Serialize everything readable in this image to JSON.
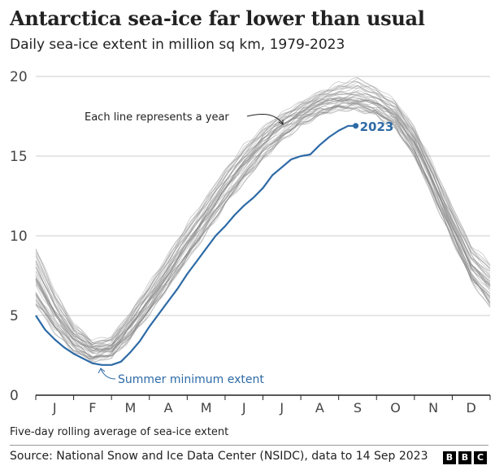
{
  "header": {
    "title": "Antarctica sea-ice far lower than usual",
    "subtitle": "Daily sea-ice extent in million sq km, 1979-2023"
  },
  "footer": {
    "note": "Five-day rolling average of sea-ice extent",
    "source": "Source: National Snow and Ice Data Center (NSIDC), data to 14 Sep 2023",
    "logo_letters": [
      "B",
      "B",
      "C"
    ]
  },
  "colors": {
    "highlight": "#2d6aa6",
    "history": "#888888",
    "grid": "#cccccc",
    "axis": "#222222",
    "text": "#222222"
  },
  "chart_data": {
    "type": "line",
    "title": "Antarctica sea-ice far lower than usual",
    "subtitle": "Daily sea-ice extent in million sq km, 1979-2023",
    "xlabel": "",
    "ylabel": "",
    "ylim": [
      0,
      20
    ],
    "yticks": [
      0,
      5,
      10,
      15,
      20
    ],
    "grid": true,
    "x_unit": "month index (0 = 1 Jan, 12 = 31 Dec)",
    "xlim": [
      0,
      12
    ],
    "month_labels": [
      "J",
      "F",
      "M",
      "A",
      "M",
      "J",
      "J",
      "A",
      "S",
      "O",
      "N",
      "D"
    ],
    "annotations": [
      {
        "text": "Each line represents a year",
        "target": "historical band, early July"
      },
      {
        "text": "Summer minimum extent",
        "target": "2023 minimum, late February"
      },
      {
        "text": "2023",
        "target": "2023 line end point"
      }
    ],
    "historical_envelope": {
      "description": "1979-2022, each year a thin grey line",
      "x": [
        0,
        0.5,
        1,
        1.5,
        2,
        2.5,
        3,
        3.5,
        4,
        4.5,
        5,
        5.5,
        6,
        6.5,
        7,
        7.5,
        8,
        8.5,
        9,
        9.5,
        10,
        10.5,
        11,
        11.5,
        12
      ],
      "min": [
        5.3,
        3.8,
        2.6,
        2.0,
        2.3,
        3.4,
        5.0,
        6.6,
        8.3,
        10.0,
        11.7,
        13.2,
        14.6,
        15.8,
        16.8,
        17.4,
        17.8,
        17.8,
        17.4,
        16.6,
        14.8,
        12.2,
        9.6,
        7.0,
        5.3
      ],
      "median": [
        7.3,
        5.2,
        3.6,
        2.8,
        3.0,
        4.3,
        6.0,
        7.7,
        9.5,
        11.3,
        13.0,
        14.6,
        15.9,
        16.9,
        17.7,
        18.3,
        18.6,
        18.6,
        18.3,
        17.6,
        15.9,
        13.4,
        10.7,
        8.1,
        7.0
      ],
      "max": [
        9.6,
        6.8,
        4.6,
        3.5,
        3.8,
        5.3,
        7.2,
        9.0,
        10.9,
        12.6,
        14.3,
        15.8,
        16.9,
        17.8,
        18.5,
        19.1,
        19.7,
        20.1,
        19.4,
        18.6,
        16.9,
        14.6,
        12.0,
        9.6,
        8.5
      ],
      "year_count": 44
    },
    "series": [
      {
        "name": "2023",
        "x": [
          0,
          0.25,
          0.5,
          0.75,
          1,
          1.25,
          1.5,
          1.75,
          2,
          2.25,
          2.5,
          2.75,
          3,
          3.25,
          3.5,
          3.75,
          4,
          4.25,
          4.5,
          4.75,
          5,
          5.25,
          5.5,
          5.75,
          6,
          6.25,
          6.5,
          6.75,
          7,
          7.25,
          7.5,
          7.75,
          8,
          8.25,
          8.45
        ],
        "values": [
          5.0,
          4.1,
          3.5,
          3.0,
          2.6,
          2.3,
          2.0,
          1.9,
          1.9,
          2.1,
          2.7,
          3.4,
          4.3,
          5.1,
          5.9,
          6.7,
          7.6,
          8.4,
          9.2,
          10.0,
          10.6,
          11.3,
          11.9,
          12.4,
          13.0,
          13.8,
          14.3,
          14.8,
          15.0,
          15.1,
          15.7,
          16.2,
          16.6,
          16.9,
          16.9
        ]
      }
    ]
  }
}
